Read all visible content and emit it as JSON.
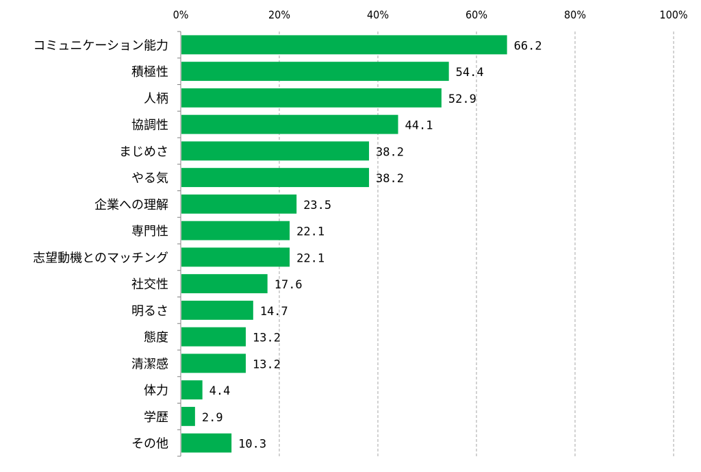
{
  "chart_data": {
    "type": "bar",
    "orientation": "horizontal",
    "title": "",
    "xlabel": "",
    "ylabel": "",
    "xlim": [
      0,
      100
    ],
    "x_ticks": [
      "0%",
      "20%",
      "40%",
      "60%",
      "80%",
      "100%"
    ],
    "x_tick_values": [
      0,
      20,
      40,
      60,
      80,
      100
    ],
    "grid": true,
    "legend": "none",
    "bar_color": "#00B050",
    "categories": [
      "コミュニケーション能力",
      "積極性",
      "人柄",
      "協調性",
      "まじめさ",
      "やる気",
      "企業への理解",
      "専門性",
      "志望動機とのマッチング",
      "社交性",
      "明るさ",
      "態度",
      "清潔感",
      "体力",
      "学歴",
      "その他"
    ],
    "values": [
      66.2,
      54.4,
      52.9,
      44.1,
      38.2,
      38.2,
      23.5,
      22.1,
      22.1,
      17.6,
      14.7,
      13.2,
      13.2,
      4.4,
      2.9,
      10.3
    ],
    "data_labels": [
      "66.2",
      "54.4",
      "52.9",
      "44.1",
      "38.2",
      "38.2",
      "23.5",
      "22.1",
      "22.1",
      "17.6",
      "14.7",
      "13.2",
      "13.2",
      "4.4",
      "2.9",
      "10.3"
    ]
  }
}
